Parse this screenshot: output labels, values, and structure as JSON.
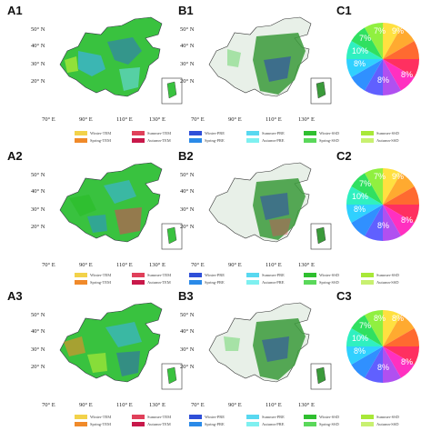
{
  "panels": {
    "A1": "A1",
    "B1": "B1",
    "C1": "C1",
    "A2": "A2",
    "B2": "B2",
    "C2": "C2",
    "A3": "A3",
    "B3": "B3",
    "C3": "C3"
  },
  "axes": {
    "lat_ticks": [
      "50° N",
      "40° N",
      "30° N",
      "20° N"
    ],
    "lon_ticks_a": [
      "70° E",
      "90° E",
      "110° E",
      "130° E"
    ],
    "lon_ticks_b": [
      "70° E",
      "90° E",
      "110° E",
      "130° E"
    ]
  },
  "legend": {
    "row1": [
      {
        "label": "Winter-TEM",
        "color": "#f2d24a"
      },
      {
        "label": "Summer-TEM",
        "color": "#e0405a"
      },
      {
        "label": "Winter-PRE",
        "color": "#2f4fd8"
      },
      {
        "label": "Summer-PRE",
        "color": "#58d8f0"
      },
      {
        "label": "Winter-SSD",
        "color": "#2fbf2f"
      },
      {
        "label": "Summer-SSD",
        "color": "#a8e838"
      }
    ],
    "row2": [
      {
        "label": "Spring-TEM",
        "color": "#f08a2a"
      },
      {
        "label": "Autumn-TEM",
        "color": "#c8184a"
      },
      {
        "label": "Spring-PRE",
        "color": "#2a8ae8"
      },
      {
        "label": "Autumn-PRE",
        "color": "#7ef0f0"
      },
      {
        "label": "Spring-SSD",
        "color": "#5ad85a"
      },
      {
        "label": "Autumn-SSD",
        "color": "#c8f070"
      }
    ]
  },
  "pies": [
    {
      "id": "C1",
      "labels": [
        "7%",
        "9%",
        "8%",
        "8%",
        "8%",
        "10%",
        "7%"
      ]
    },
    {
      "id": "C2",
      "labels": [
        "7%",
        "9%",
        "8%",
        "8%",
        "8%",
        "10%",
        "7%"
      ]
    },
    {
      "id": "C3",
      "labels": [
        "8%",
        "8%",
        "8%",
        "8%",
        "8%",
        "10%",
        "7%"
      ]
    }
  ],
  "colors": {
    "pie_slices": [
      "#ffe040",
      "#ffaa30",
      "#ff6a30",
      "#ff3060",
      "#ff30c0",
      "#b050f0",
      "#6060ff",
      "#3090ff",
      "#30d0ff",
      "#30f0c0",
      "#30e060",
      "#90f040"
    ]
  }
}
